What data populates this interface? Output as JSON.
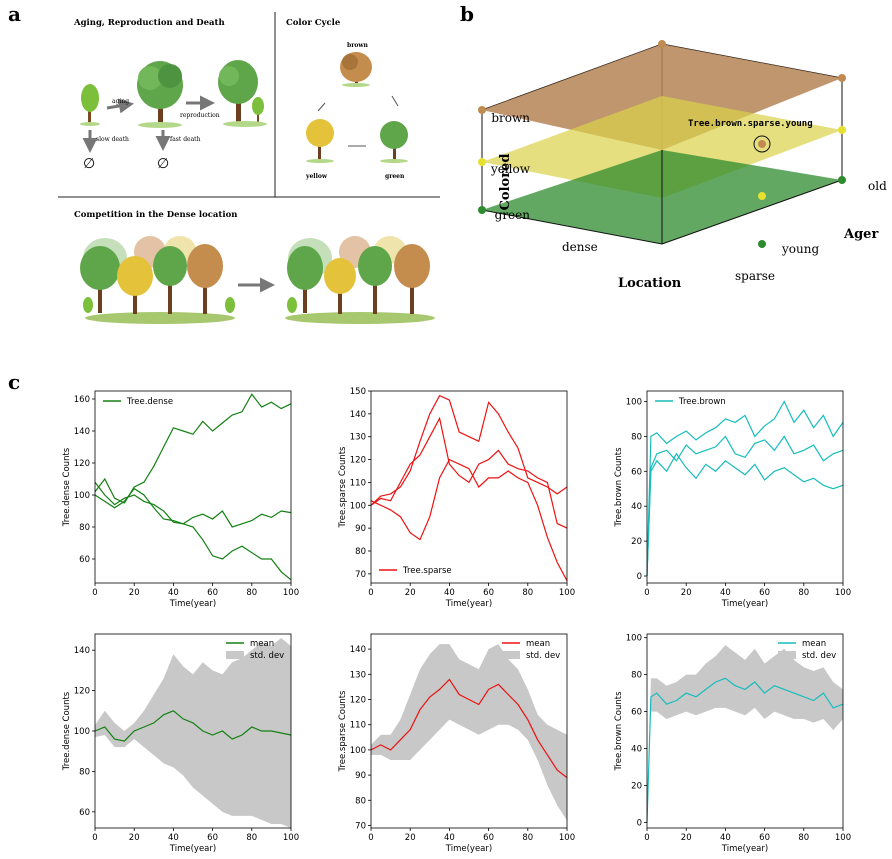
{
  "panel_labels": {
    "a": "a",
    "b": "b",
    "c": "c"
  },
  "panel_a": {
    "aging_section_title": "Aging, Reproduction and Death",
    "aging_label": "aging",
    "reproduction_label": "reproduction",
    "slow_death_label": "slow death",
    "fast_death_label": "fast death",
    "empty_set": "∅",
    "color_cycle_title": "Color Cycle",
    "brown_label": "brown",
    "yellow_label": "yellow",
    "green_label": "green",
    "competition_title": "Competition in the Dense location"
  },
  "panel_b": {
    "layer_labels": [
      "brown",
      "yellow",
      "green"
    ],
    "layer_colors": [
      "#b58456",
      "#dcd24a",
      "#2e8b2e"
    ],
    "axis_colored": "Colored",
    "axis_location": "Location",
    "axis_ager": "Ager",
    "loc_dense": "dense",
    "loc_sparse": "sparse",
    "age_young": "young",
    "age_old": "old",
    "annotation": "Tree.brown.sparse.young"
  },
  "chart_data": [
    {
      "type": "line",
      "ylabel": "Tree.dense Counts",
      "xlabel": "Time(year)",
      "legend": [
        "Tree.dense"
      ],
      "legend_position": "upper-left",
      "color": "#138013",
      "xlim": [
        0,
        100
      ],
      "ylim": [
        45,
        165
      ],
      "xticks": [
        0,
        20,
        40,
        60,
        80,
        100
      ],
      "yticks": [
        60,
        80,
        100,
        120,
        140,
        160
      ],
      "x": [
        0,
        5,
        10,
        15,
        20,
        25,
        30,
        35,
        40,
        45,
        50,
        55,
        60,
        65,
        70,
        75,
        80,
        85,
        90,
        95,
        100
      ],
      "series": [
        {
          "values": [
            102,
            110,
            98,
            95,
            105,
            108,
            118,
            130,
            142,
            140,
            138,
            146,
            140,
            145,
            150,
            152,
            163,
            155,
            158,
            154,
            157
          ]
        },
        {
          "values": [
            100,
            96,
            92,
            96,
            104,
            100,
            92,
            85,
            84,
            82,
            86,
            88,
            85,
            90,
            80,
            82,
            84,
            88,
            86,
            90,
            89
          ]
        },
        {
          "values": [
            108,
            100,
            94,
            98,
            100,
            96,
            94,
            90,
            83,
            82,
            80,
            72,
            62,
            60,
            65,
            68,
            64,
            60,
            60,
            52,
            47
          ]
        }
      ]
    },
    {
      "type": "line",
      "ylabel": "Tree.sparse Counts",
      "xlabel": "Time(year)",
      "legend": [
        "Tree.sparse"
      ],
      "legend_position": "lower-left",
      "color": "#ee1111",
      "xlim": [
        0,
        100
      ],
      "ylim": [
        66,
        150
      ],
      "xticks": [
        0,
        20,
        40,
        60,
        80,
        100
      ],
      "yticks": [
        70,
        80,
        90,
        100,
        110,
        120,
        130,
        140,
        150
      ],
      "x": [
        0,
        5,
        10,
        15,
        20,
        25,
        30,
        35,
        40,
        45,
        50,
        55,
        60,
        65,
        70,
        75,
        80,
        85,
        90,
        95,
        100
      ],
      "series": [
        {
          "values": [
            100,
            104,
            105,
            108,
            115,
            128,
            140,
            148,
            146,
            132,
            130,
            128,
            145,
            140,
            132,
            125,
            112,
            110,
            108,
            105,
            108
          ]
        },
        {
          "values": [
            102,
            100,
            98,
            95,
            88,
            85,
            95,
            112,
            120,
            118,
            116,
            108,
            112,
            112,
            115,
            112,
            110,
            100,
            86,
            75,
            67
          ]
        },
        {
          "values": [
            100,
            103,
            102,
            110,
            118,
            122,
            130,
            138,
            118,
            113,
            110,
            118,
            120,
            124,
            118,
            116,
            115,
            112,
            110,
            92,
            90
          ]
        }
      ]
    },
    {
      "type": "line",
      "ylabel": "Tree.brown Counts",
      "xlabel": "Time(year)",
      "legend": [
        "Tree.brown"
      ],
      "legend_position": "upper-left",
      "color": "#17bcbc",
      "xlim": [
        0,
        100
      ],
      "ylim": [
        -4,
        106
      ],
      "xticks": [
        0,
        20,
        40,
        60,
        80,
        100
      ],
      "yticks": [
        0,
        20,
        40,
        60,
        80,
        100
      ],
      "x": [
        0,
        2,
        5,
        10,
        15,
        20,
        25,
        30,
        35,
        40,
        45,
        50,
        55,
        60,
        65,
        70,
        75,
        80,
        85,
        90,
        95,
        100
      ],
      "series": [
        {
          "values": [
            0,
            80,
            82,
            76,
            80,
            83,
            78,
            82,
            85,
            90,
            88,
            92,
            80,
            86,
            90,
            100,
            88,
            95,
            85,
            92,
            80,
            88
          ]
        },
        {
          "values": [
            0,
            62,
            70,
            72,
            66,
            75,
            70,
            72,
            74,
            80,
            70,
            68,
            76,
            78,
            72,
            80,
            70,
            72,
            75,
            66,
            70,
            72
          ]
        },
        {
          "values": [
            0,
            60,
            66,
            60,
            70,
            62,
            56,
            64,
            60,
            66,
            62,
            58,
            64,
            55,
            60,
            62,
            58,
            54,
            56,
            52,
            50,
            52
          ]
        }
      ]
    },
    {
      "type": "line",
      "ylabel": "Tree.dense Counts",
      "xlabel": "Time(year)",
      "legend": [
        "mean",
        "std. dev"
      ],
      "legend_position": "upper-right",
      "color": "#138013",
      "band_color": "#c8c8c8",
      "xlim": [
        0,
        100
      ],
      "ylim": [
        52,
        148
      ],
      "xticks": [
        0,
        20,
        40,
        60,
        80,
        100
      ],
      "yticks": [
        60,
        80,
        100,
        120,
        140
      ],
      "x": [
        0,
        5,
        10,
        15,
        20,
        25,
        30,
        35,
        40,
        45,
        50,
        55,
        60,
        65,
        70,
        75,
        80,
        85,
        90,
        95,
        100
      ],
      "series": [
        {
          "name": "mean",
          "values": [
            100,
            102,
            96,
            95,
            100,
            102,
            104,
            108,
            110,
            106,
            104,
            100,
            98,
            100,
            96,
            98,
            102,
            100,
            100,
            99,
            98
          ]
        },
        {
          "name": "std. dev",
          "lower": [
            97,
            98,
            92,
            92,
            96,
            92,
            88,
            84,
            82,
            78,
            72,
            68,
            64,
            60,
            58,
            58,
            58,
            56,
            54,
            54,
            52
          ],
          "upper": [
            103,
            110,
            104,
            100,
            104,
            110,
            118,
            126,
            138,
            132,
            128,
            134,
            130,
            128,
            134,
            136,
            140,
            144,
            142,
            146,
            142
          ]
        }
      ]
    },
    {
      "type": "line",
      "ylabel": "Tree.sparse Counts",
      "xlabel": "Time(year)",
      "legend": [
        "mean",
        "std. dev"
      ],
      "legend_position": "upper-right",
      "color": "#ee1111",
      "band_color": "#c8c8c8",
      "xlim": [
        0,
        100
      ],
      "ylim": [
        69,
        146
      ],
      "xticks": [
        0,
        20,
        40,
        60,
        80,
        100
      ],
      "yticks": [
        70,
        80,
        90,
        100,
        110,
        120,
        130,
        140
      ],
      "x": [
        0,
        5,
        10,
        15,
        20,
        25,
        30,
        35,
        40,
        45,
        50,
        55,
        60,
        65,
        70,
        75,
        80,
        85,
        90,
        95,
        100
      ],
      "series": [
        {
          "name": "mean",
          "values": [
            100,
            102,
            100,
            104,
            108,
            116,
            121,
            124,
            128,
            122,
            120,
            118,
            124,
            126,
            122,
            118,
            112,
            104,
            98,
            92,
            89
          ]
        },
        {
          "name": "std. dev",
          "lower": [
            98,
            98,
            96,
            96,
            96,
            100,
            104,
            108,
            112,
            110,
            108,
            106,
            108,
            110,
            110,
            108,
            104,
            96,
            86,
            78,
            72
          ],
          "upper": [
            102,
            106,
            106,
            112,
            122,
            132,
            138,
            142,
            142,
            136,
            134,
            132,
            140,
            142,
            136,
            132,
            124,
            114,
            110,
            108,
            106
          ]
        }
      ]
    },
    {
      "type": "line",
      "ylabel": "Tree.brown Counts",
      "xlabel": "Time(year)",
      "legend": [
        "mean",
        "std. dev"
      ],
      "legend_position": "upper-right",
      "color": "#17bcbc",
      "band_color": "#c8c8c8",
      "xlim": [
        0,
        100
      ],
      "ylim": [
        -3,
        102
      ],
      "xticks": [
        0,
        20,
        40,
        60,
        80,
        100
      ],
      "yticks": [
        0,
        20,
        40,
        60,
        80,
        100
      ],
      "x": [
        0,
        2,
        5,
        10,
        15,
        20,
        25,
        30,
        35,
        40,
        45,
        50,
        55,
        60,
        65,
        70,
        75,
        80,
        85,
        90,
        95,
        100
      ],
      "series": [
        {
          "name": "mean",
          "values": [
            0,
            68,
            70,
            64,
            66,
            70,
            68,
            72,
            76,
            78,
            74,
            72,
            76,
            70,
            74,
            72,
            70,
            68,
            66,
            70,
            62,
            64
          ]
        },
        {
          "name": "std. dev",
          "lower": [
            0,
            60,
            60,
            56,
            58,
            60,
            58,
            60,
            62,
            62,
            60,
            58,
            62,
            56,
            60,
            58,
            56,
            56,
            54,
            56,
            50,
            56
          ],
          "upper": [
            0,
            78,
            78,
            74,
            76,
            80,
            80,
            86,
            90,
            96,
            92,
            88,
            94,
            86,
            90,
            94,
            88,
            84,
            82,
            84,
            76,
            72
          ]
        }
      ]
    }
  ]
}
